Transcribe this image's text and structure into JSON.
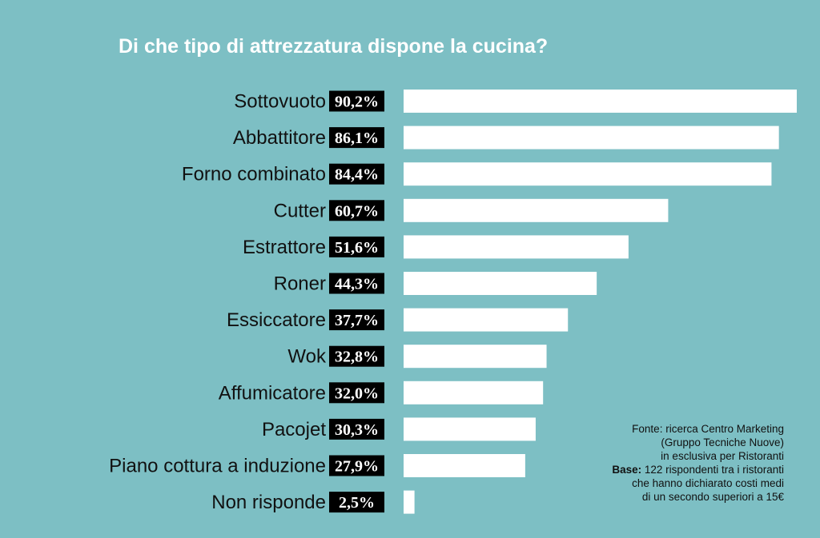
{
  "chart_data": {
    "type": "bar",
    "orientation": "horizontal",
    "title": "Di che tipo di attrezzatura dispone la cucina?",
    "categories": [
      "Sottovuoto",
      "Abbattitore",
      "Forno combinato",
      "Cutter",
      "Estrattore",
      "Roner",
      "Essiccatore",
      "Wok",
      "Affumicatore",
      "Pacojet",
      "Piano cottura a induzione",
      "Non risponde"
    ],
    "values": [
      90.2,
      86.1,
      84.4,
      60.7,
      51.6,
      44.3,
      37.7,
      32.8,
      32.0,
      30.3,
      27.9,
      2.5
    ],
    "value_labels": [
      "90,2%",
      "86,1%",
      "84,4%",
      "60,7%",
      "51,6%",
      "44,3%",
      "37,7%",
      "32,8%",
      "32,0%",
      "30,3%",
      "27,9%",
      "2,5%"
    ],
    "xlim": [
      0,
      90.2
    ],
    "xlabel": "",
    "ylabel": "",
    "grid": false,
    "legend": "none"
  },
  "source": {
    "line1": "Fonte: ricerca Centro Marketing",
    "line2": "(Gruppo Tecniche Nuove)",
    "line3": "in esclusiva per Ristoranti",
    "base_label": "Base:",
    "line4": "122 rispondenti tra i ristoranti",
    "line5": "che hanno dichiarato costi medi",
    "line6": "di un secondo superiori a 15€"
  },
  "colors": {
    "background": "#7dbfc4",
    "bar": "#ffffff",
    "value_box": "#000000"
  }
}
